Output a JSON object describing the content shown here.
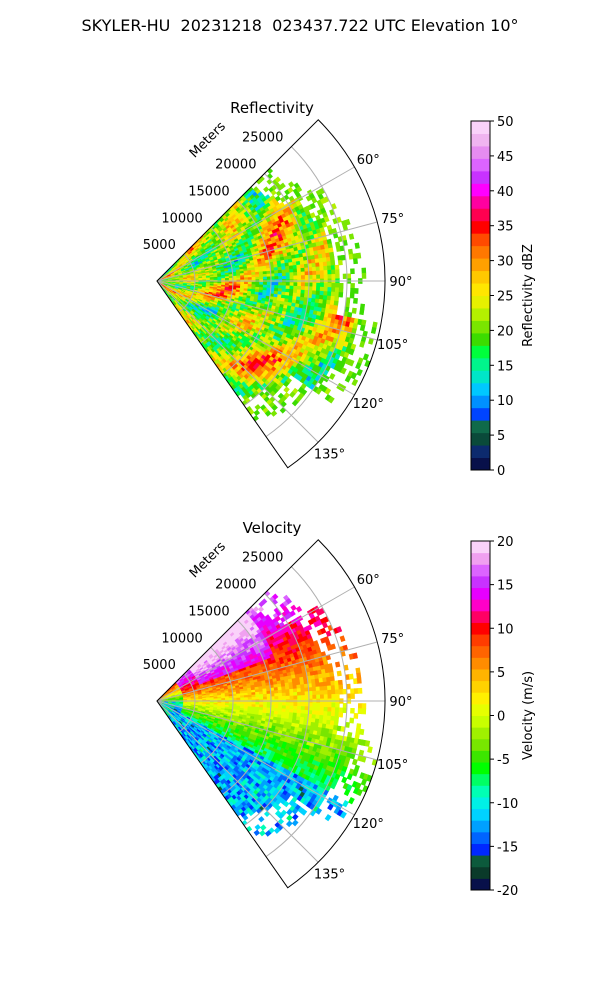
{
  "figure": {
    "title": "SKYLER-HU  20231218  023437.722 UTC Elevation 10°"
  },
  "chart_data": [
    {
      "type": "heatmap",
      "subtype": "polar-sector",
      "title": "Reflectivity",
      "radial_label": "Meters",
      "radial_ticks": [
        5000,
        10000,
        15000,
        20000,
        25000
      ],
      "radial_range": [
        0,
        30000
      ],
      "theta_range_deg": [
        45,
        145
      ],
      "theta_ticks": [
        "60°",
        "75°",
        "90°",
        "105°",
        "120°",
        "135°"
      ],
      "theta_tick_values": [
        60,
        75,
        90,
        105,
        120,
        135
      ],
      "grid": true,
      "colorbar": {
        "label": "Reflectivity dBZ",
        "range": [
          0,
          50
        ],
        "ticks": [
          0,
          5,
          10,
          15,
          20,
          25,
          30,
          35,
          40,
          45,
          50
        ],
        "colors": [
          "#08104a",
          "#0c2a6e",
          "#0a4a3a",
          "#0f6a4a",
          "#0044ff",
          "#0090ff",
          "#00c8ff",
          "#00e6c8",
          "#00f58c",
          "#00ff3c",
          "#3cdc00",
          "#7ae600",
          "#b4f000",
          "#e6f000",
          "#ffe600",
          "#ffc800",
          "#ffa000",
          "#ff7800",
          "#ff4a00",
          "#ff0000",
          "#ff0050",
          "#ff00a0",
          "#ff00ff",
          "#c832ff",
          "#dc64ff",
          "#e68cf0",
          "#f0b4f0",
          "#fad2fa"
        ]
      },
      "description_values": {
        "dominant_range_dbz": [
          15,
          30
        ],
        "max_echo_extent_m": 25000
      }
    },
    {
      "type": "heatmap",
      "subtype": "polar-sector",
      "title": "Velocity",
      "radial_label": "Meters",
      "radial_ticks": [
        5000,
        10000,
        15000,
        20000,
        25000
      ],
      "radial_range": [
        0,
        30000
      ],
      "theta_range_deg": [
        45,
        145
      ],
      "theta_ticks": [
        "60°",
        "75°",
        "90°",
        "105°",
        "120°",
        "135°"
      ],
      "theta_tick_values": [
        60,
        75,
        90,
        105,
        120,
        135
      ],
      "grid": true,
      "colorbar": {
        "label": "Velocity (m/s)",
        "range": [
          -20,
          20
        ],
        "ticks": [
          -20,
          -15,
          -10,
          -5,
          0,
          5,
          10,
          15,
          20
        ],
        "colors": [
          "#08104a",
          "#0a3a2a",
          "#0c5a3c",
          "#0028ff",
          "#0064ff",
          "#00a0ff",
          "#00d2ff",
          "#00f0e6",
          "#00ffb4",
          "#00ff64",
          "#00ff00",
          "#3ce600",
          "#78e600",
          "#a0f000",
          "#c8ff00",
          "#e6ff00",
          "#fff000",
          "#ffd200",
          "#ffb400",
          "#ff8c00",
          "#ff6400",
          "#ff3c00",
          "#ff0000",
          "#ff0064",
          "#ff00c8",
          "#e600ff",
          "#c832ff",
          "#dc64ff",
          "#f0a0f0",
          "#fad2fa"
        ]
      },
      "description_values": {
        "approaching_min_ms": -20,
        "receding_max_ms": 20
      }
    }
  ]
}
